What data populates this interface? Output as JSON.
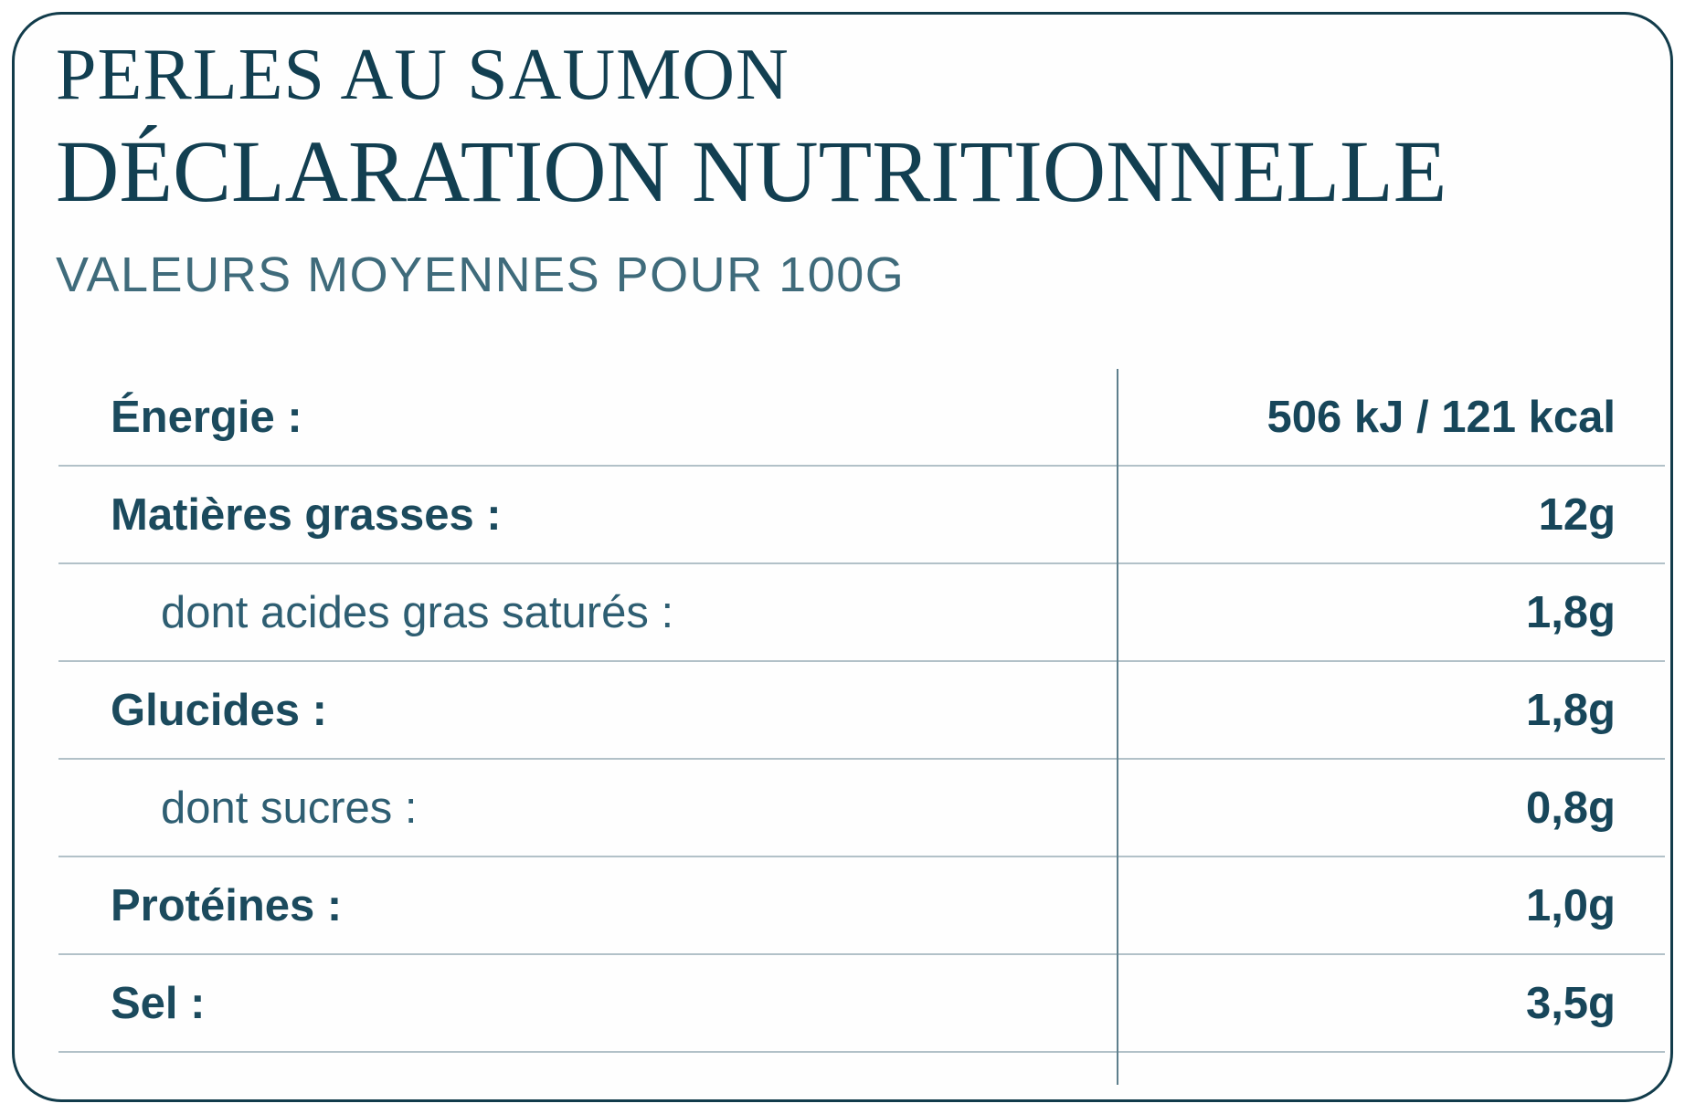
{
  "header": {
    "product_title": "PERLES AU SAUMON",
    "main_title": "DÉCLARATION NUTRITIONNELLE",
    "subtitle": "VALEURS MOYENNES POUR 100G"
  },
  "table": {
    "rows": [
      {
        "label": "Énergie :",
        "value": "506 kJ / 121 kcal",
        "indent": false
      },
      {
        "label": "Matières grasses :",
        "value": "12g",
        "indent": false
      },
      {
        "label": "dont acides gras saturés :",
        "value": "1,8g",
        "indent": true
      },
      {
        "label": "Glucides :",
        "value": "1,8g",
        "indent": false
      },
      {
        "label": "dont sucres :",
        "value": "0,8g",
        "indent": true
      },
      {
        "label": "Protéines :",
        "value": "1,0g",
        "indent": false
      },
      {
        "label": "Sel :",
        "value": "3,5g",
        "indent": false
      }
    ]
  },
  "colors": {
    "title_text": "#123f51",
    "subtitle_text": "#3f6b7b",
    "label_text": "#1b4a5d",
    "sub_label_text": "#2e5e72",
    "card_border": "#123c4b",
    "row_divider": "#b2c1c8",
    "column_divider": "#5e7f8c",
    "background": "#ffffff"
  }
}
